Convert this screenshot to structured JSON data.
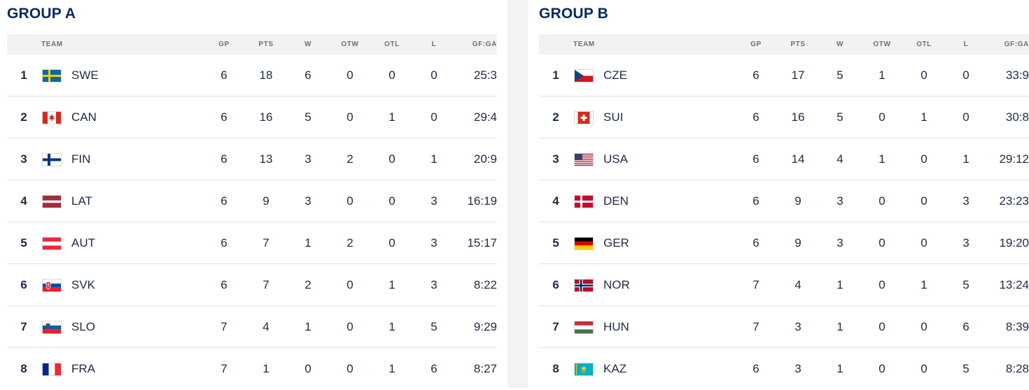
{
  "columns": {
    "team": "TEAM",
    "gp": "GP",
    "pts": "PTS",
    "w": "W",
    "otw": "OTW",
    "otl": "OTL",
    "l": "L",
    "gfga": "GF:GA"
  },
  "group_a": {
    "title": "GROUP A",
    "rows": [
      {
        "rank": "1",
        "team": "SWE",
        "flag": "sweden-flag-icon",
        "gp": "6",
        "pts": "18",
        "w": "6",
        "otw": "0",
        "otl": "0",
        "l": "0",
        "gfga": "25:3"
      },
      {
        "rank": "2",
        "team": "CAN",
        "flag": "canada-flag-icon",
        "gp": "6",
        "pts": "16",
        "w": "5",
        "otw": "0",
        "otl": "1",
        "l": "0",
        "gfga": "29:4"
      },
      {
        "rank": "3",
        "team": "FIN",
        "flag": "finland-flag-icon",
        "gp": "6",
        "pts": "13",
        "w": "3",
        "otw": "2",
        "otl": "0",
        "l": "1",
        "gfga": "20:9"
      },
      {
        "rank": "4",
        "team": "LAT",
        "flag": "latvia-flag-icon",
        "gp": "6",
        "pts": "9",
        "w": "3",
        "otw": "0",
        "otl": "0",
        "l": "3",
        "gfga": "16:19"
      },
      {
        "rank": "5",
        "team": "AUT",
        "flag": "austria-flag-icon",
        "gp": "6",
        "pts": "7",
        "w": "1",
        "otw": "2",
        "otl": "0",
        "l": "3",
        "gfga": "15:17"
      },
      {
        "rank": "6",
        "team": "SVK",
        "flag": "slovakia-flag-icon",
        "gp": "6",
        "pts": "7",
        "w": "2",
        "otw": "0",
        "otl": "1",
        "l": "3",
        "gfga": "8:22"
      },
      {
        "rank": "7",
        "team": "SLO",
        "flag": "slovenia-flag-icon",
        "gp": "7",
        "pts": "4",
        "w": "1",
        "otw": "0",
        "otl": "1",
        "l": "5",
        "gfga": "9:29"
      },
      {
        "rank": "8",
        "team": "FRA",
        "flag": "france-flag-icon",
        "gp": "7",
        "pts": "1",
        "w": "0",
        "otw": "0",
        "otl": "1",
        "l": "6",
        "gfga": "8:27"
      }
    ]
  },
  "group_b": {
    "title": "GROUP B",
    "rows": [
      {
        "rank": "1",
        "team": "CZE",
        "flag": "czechia-flag-icon",
        "gp": "6",
        "pts": "17",
        "w": "5",
        "otw": "1",
        "otl": "0",
        "l": "0",
        "gfga": "33:9"
      },
      {
        "rank": "2",
        "team": "SUI",
        "flag": "switzerland-flag-icon",
        "gp": "6",
        "pts": "16",
        "w": "5",
        "otw": "0",
        "otl": "1",
        "l": "0",
        "gfga": "30:8"
      },
      {
        "rank": "3",
        "team": "USA",
        "flag": "usa-flag-icon",
        "gp": "6",
        "pts": "14",
        "w": "4",
        "otw": "1",
        "otl": "0",
        "l": "1",
        "gfga": "29:12"
      },
      {
        "rank": "4",
        "team": "DEN",
        "flag": "denmark-flag-icon",
        "gp": "6",
        "pts": "9",
        "w": "3",
        "otw": "0",
        "otl": "0",
        "l": "3",
        "gfga": "23:23"
      },
      {
        "rank": "5",
        "team": "GER",
        "flag": "germany-flag-icon",
        "gp": "6",
        "pts": "9",
        "w": "3",
        "otw": "0",
        "otl": "0",
        "l": "3",
        "gfga": "19:20"
      },
      {
        "rank": "6",
        "team": "NOR",
        "flag": "norway-flag-icon",
        "gp": "7",
        "pts": "4",
        "w": "1",
        "otw": "0",
        "otl": "1",
        "l": "5",
        "gfga": "13:24"
      },
      {
        "rank": "7",
        "team": "HUN",
        "flag": "hungary-flag-icon",
        "gp": "7",
        "pts": "3",
        "w": "1",
        "otw": "0",
        "otl": "0",
        "l": "6",
        "gfga": "8:39"
      },
      {
        "rank": "8",
        "team": "KAZ",
        "flag": "kazakhstan-flag-icon",
        "gp": "6",
        "pts": "3",
        "w": "1",
        "otw": "0",
        "otl": "0",
        "l": "5",
        "gfga": "8:28"
      }
    ]
  },
  "colors": {
    "title": "#0a2a5c",
    "header_bg": "#f2f2f2",
    "divider_bg": "#f3f3f3",
    "row_border": "#e2e2e2"
  }
}
